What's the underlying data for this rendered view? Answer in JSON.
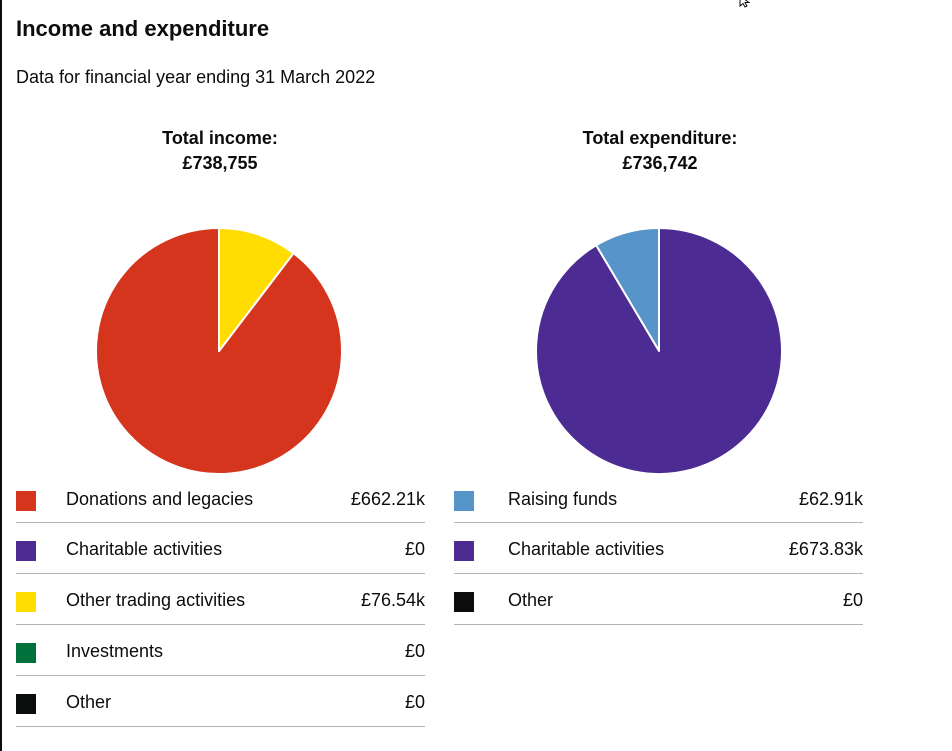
{
  "title": "Income and expenditure",
  "subtitle": "Data for financial year ending 31 March 2022",
  "chart_data": [
    {
      "type": "pie",
      "title": "Total income:",
      "total": "£738,755",
      "legend": [
        {
          "name": "Donations and legacies",
          "value_label": "£662.21k",
          "value": 662.21,
          "color": "#d4351c"
        },
        {
          "name": "Charitable activities",
          "value_label": "£0",
          "value": 0,
          "color": "#4c2c92"
        },
        {
          "name": "Other trading activities",
          "value_label": "£76.54k",
          "value": 76.54,
          "color": "#ffdd00"
        },
        {
          "name": "Investments",
          "value_label": "£0",
          "value": 0,
          "color": "#00703c"
        },
        {
          "name": "Other",
          "value_label": "£0",
          "value": 0,
          "color": "#0b0c0c"
        }
      ]
    },
    {
      "type": "pie",
      "title": "Total expenditure:",
      "total": "£736,742",
      "legend": [
        {
          "name": "Raising funds",
          "value_label": "£62.91k",
          "value": 62.91,
          "color": "#5694ca"
        },
        {
          "name": "Charitable activities",
          "value_label": "£673.83k",
          "value": 673.83,
          "color": "#4c2c92"
        },
        {
          "name": "Other",
          "value_label": "£0",
          "value": 0,
          "color": "#0b0c0c"
        }
      ]
    }
  ]
}
